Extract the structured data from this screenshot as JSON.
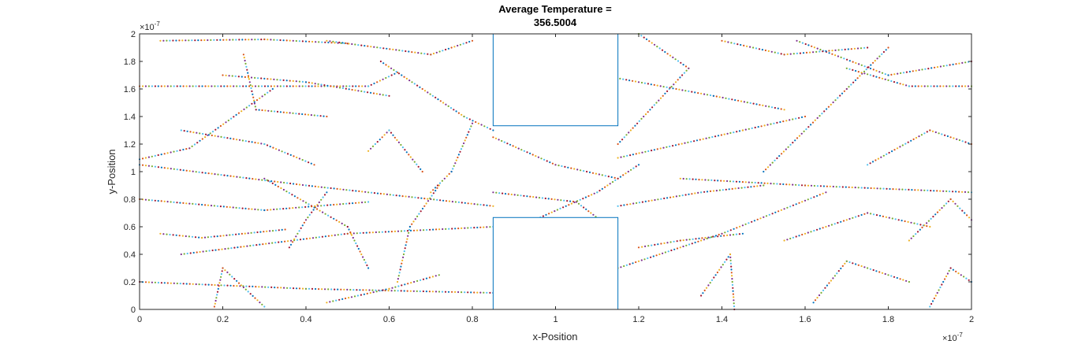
{
  "chart_data": {
    "type": "scatter",
    "title_line1": "Average Temperature =",
    "title_line2": "356.5004",
    "xlabel": "x-Position",
    "ylabel": "y-Position",
    "x_multiplier": "×10",
    "x_exponent": "-7",
    "y_multiplier": "×10",
    "y_exponent": "-7",
    "xlim": [
      0,
      2
    ],
    "ylim": [
      0,
      2
    ],
    "x_ticks": [
      "0",
      "0.2",
      "0.4",
      "0.6",
      "0.8",
      "1",
      "1.2",
      "1.4",
      "1.6",
      "1.8",
      "2"
    ],
    "y_ticks": [
      "0",
      "0.2",
      "0.4",
      "0.6",
      "0.8",
      "1",
      "1.2",
      "1.4",
      "1.6",
      "1.8",
      "2"
    ],
    "grid": false,
    "boxes": [
      {
        "x": [
          0.85,
          1.15
        ],
        "y": [
          1.333,
          2.0
        ],
        "color": "#0072bd"
      },
      {
        "x": [
          0.85,
          1.15
        ],
        "y": [
          0.0,
          0.667
        ],
        "color": "#0072bd"
      }
    ],
    "trajectory_colors": [
      "#0072bd",
      "#d95319",
      "#edb120",
      "#7e2f8e",
      "#77ac30",
      "#4dbeee",
      "#a2142f"
    ],
    "trajectories": [
      [
        [
          0.0,
          1.09
        ],
        [
          0.12,
          1.17
        ],
        [
          0.32,
          1.6
        ]
      ],
      [
        [
          0.0,
          1.62
        ],
        [
          0.55,
          1.62
        ],
        [
          0.62,
          1.72
        ]
      ],
      [
        [
          0.05,
          1.95
        ],
        [
          0.3,
          1.96
        ],
        [
          0.5,
          1.93
        ]
      ],
      [
        [
          0.0,
          1.05
        ],
        [
          0.4,
          0.9
        ],
        [
          0.85,
          0.75
        ]
      ],
      [
        [
          0.1,
          0.4
        ],
        [
          0.5,
          0.55
        ],
        [
          0.85,
          0.6
        ]
      ],
      [
        [
          0.0,
          0.2
        ],
        [
          0.4,
          0.15
        ],
        [
          0.85,
          0.12
        ]
      ],
      [
        [
          0.18,
          0.02
        ],
        [
          0.2,
          0.3
        ],
        [
          0.3,
          0.02
        ]
      ],
      [
        [
          0.36,
          0.45
        ],
        [
          0.4,
          0.65
        ],
        [
          0.45,
          0.85
        ]
      ],
      [
        [
          0.25,
          1.85
        ],
        [
          0.28,
          1.45
        ],
        [
          0.45,
          1.4
        ]
      ],
      [
        [
          0.45,
          1.95
        ],
        [
          0.7,
          1.85
        ],
        [
          0.8,
          1.95
        ]
      ],
      [
        [
          0.55,
          1.15
        ],
        [
          0.6,
          1.3
        ],
        [
          0.68,
          1.0
        ]
      ],
      [
        [
          0.62,
          0.2
        ],
        [
          0.65,
          0.6
        ],
        [
          0.72,
          0.9
        ]
      ],
      [
        [
          0.8,
          1.35
        ],
        [
          0.75,
          1.0
        ],
        [
          0.7,
          0.85
        ]
      ],
      [
        [
          0.3,
          0.95
        ],
        [
          0.5,
          0.6
        ],
        [
          0.55,
          0.3
        ]
      ],
      [
        [
          0.0,
          0.8
        ],
        [
          0.3,
          0.72
        ],
        [
          0.55,
          0.78
        ]
      ],
      [
        [
          0.58,
          1.8
        ],
        [
          0.78,
          1.4
        ],
        [
          0.85,
          1.3
        ]
      ],
      [
        [
          0.85,
          1.25
        ],
        [
          1.0,
          1.05
        ],
        [
          1.15,
          0.95
        ]
      ],
      [
        [
          0.85,
          0.85
        ],
        [
          1.05,
          0.78
        ],
        [
          1.12,
          0.62
        ]
      ],
      [
        [
          1.15,
          1.1
        ],
        [
          1.45,
          1.3
        ],
        [
          1.6,
          1.4
        ]
      ],
      [
        [
          1.15,
          0.3
        ],
        [
          1.4,
          0.55
        ],
        [
          1.65,
          0.85
        ]
      ],
      [
        [
          1.2,
          2.0
        ],
        [
          1.32,
          1.75
        ],
        [
          1.15,
          1.2
        ]
      ],
      [
        [
          1.3,
          0.95
        ],
        [
          1.6,
          0.9
        ],
        [
          2.0,
          0.85
        ]
      ],
      [
        [
          1.35,
          0.1
        ],
        [
          1.42,
          0.4
        ],
        [
          1.43,
          0.0
        ]
      ],
      [
        [
          1.5,
          1.0
        ],
        [
          1.7,
          1.6
        ],
        [
          1.8,
          1.9
        ]
      ],
      [
        [
          1.55,
          0.5
        ],
        [
          1.75,
          0.7
        ],
        [
          1.9,
          0.6
        ]
      ],
      [
        [
          1.58,
          1.95
        ],
        [
          1.8,
          1.7
        ],
        [
          2.0,
          1.8
        ]
      ],
      [
        [
          1.62,
          0.05
        ],
        [
          1.7,
          0.35
        ],
        [
          1.85,
          0.2
        ]
      ],
      [
        [
          1.75,
          1.05
        ],
        [
          1.9,
          1.3
        ],
        [
          2.0,
          1.2
        ]
      ],
      [
        [
          1.85,
          0.5
        ],
        [
          1.95,
          0.8
        ],
        [
          2.0,
          0.65
        ]
      ],
      [
        [
          1.7,
          1.75
        ],
        [
          1.85,
          1.62
        ],
        [
          2.0,
          1.62
        ]
      ],
      [
        [
          1.15,
          0.75
        ],
        [
          1.35,
          0.85
        ],
        [
          1.5,
          0.9
        ]
      ],
      [
        [
          0.1,
          1.3
        ],
        [
          0.3,
          1.2
        ],
        [
          0.42,
          1.05
        ]
      ],
      [
        [
          0.05,
          0.55
        ],
        [
          0.15,
          0.52
        ],
        [
          0.35,
          0.58
        ]
      ],
      [
        [
          0.45,
          0.05
        ],
        [
          0.6,
          0.15
        ],
        [
          0.72,
          0.25
        ]
      ],
      [
        [
          1.9,
          0.02
        ],
        [
          1.95,
          0.3
        ],
        [
          2.0,
          0.2
        ]
      ],
      [
        [
          1.2,
          0.45
        ],
        [
          1.3,
          0.5
        ],
        [
          1.45,
          0.55
        ]
      ],
      [
        [
          0.2,
          1.7
        ],
        [
          0.4,
          1.65
        ],
        [
          0.6,
          1.55
        ]
      ],
      [
        [
          1.02,
          1.75
        ],
        [
          1.38,
          1.55
        ],
        [
          1.55,
          1.45
        ]
      ],
      [
        [
          0.95,
          0.65
        ],
        [
          1.1,
          0.85
        ],
        [
          1.2,
          1.05
        ]
      ],
      [
        [
          1.4,
          1.95
        ],
        [
          1.55,
          1.85
        ],
        [
          1.75,
          1.9
        ]
      ]
    ]
  }
}
